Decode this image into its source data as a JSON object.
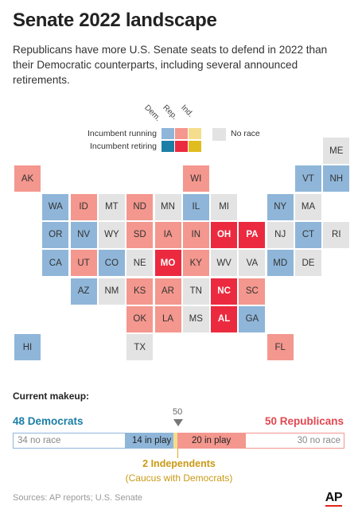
{
  "title": "Senate 2022 landscape",
  "subtitle": "Republicans have more U.S. Senate seats to defend in 2022 than their Democratic counterparts, including several announced retirements.",
  "legend": {
    "columns": [
      "Dem.",
      "Rep.",
      "Ind."
    ],
    "rows": [
      "Incumbent running",
      "Incumbent retiring"
    ],
    "no_race": "No race",
    "colors": {
      "dem_running": "#8fb6d9",
      "rep_running": "#f4978e",
      "ind_running": "#f4dd8c",
      "dem_retiring": "#1b7ea6",
      "rep_retiring": "#ec2a3f",
      "ind_retiring": "#e0bc1e",
      "no_race": "#e3e3e3"
    }
  },
  "states": [
    {
      "code": "ME",
      "status": "no_race"
    },
    {
      "code": "AK",
      "status": "rep_running"
    },
    {
      "code": "WI",
      "status": "rep_running"
    },
    {
      "code": "VT",
      "status": "dem_running"
    },
    {
      "code": "NH",
      "status": "dem_running"
    },
    {
      "code": "WA",
      "status": "dem_running"
    },
    {
      "code": "ID",
      "status": "rep_running"
    },
    {
      "code": "MT",
      "status": "no_race"
    },
    {
      "code": "ND",
      "status": "rep_running"
    },
    {
      "code": "MN",
      "status": "no_race"
    },
    {
      "code": "IL",
      "status": "dem_running"
    },
    {
      "code": "MI",
      "status": "no_race"
    },
    {
      "code": "NY",
      "status": "dem_running"
    },
    {
      "code": "MA",
      "status": "no_race"
    },
    {
      "code": "OR",
      "status": "dem_running"
    },
    {
      "code": "NV",
      "status": "dem_running"
    },
    {
      "code": "WY",
      "status": "no_race"
    },
    {
      "code": "SD",
      "status": "rep_running"
    },
    {
      "code": "IA",
      "status": "rep_running"
    },
    {
      "code": "IN",
      "status": "rep_running"
    },
    {
      "code": "OH",
      "status": "rep_retiring"
    },
    {
      "code": "PA",
      "status": "rep_retiring"
    },
    {
      "code": "NJ",
      "status": "no_race"
    },
    {
      "code": "CT",
      "status": "dem_running"
    },
    {
      "code": "RI",
      "status": "no_race"
    },
    {
      "code": "CA",
      "status": "dem_running"
    },
    {
      "code": "UT",
      "status": "rep_running"
    },
    {
      "code": "CO",
      "status": "dem_running"
    },
    {
      "code": "NE",
      "status": "no_race"
    },
    {
      "code": "MO",
      "status": "rep_retiring"
    },
    {
      "code": "KY",
      "status": "rep_running"
    },
    {
      "code": "WV",
      "status": "no_race"
    },
    {
      "code": "VA",
      "status": "no_race"
    },
    {
      "code": "MD",
      "status": "dem_running"
    },
    {
      "code": "DE",
      "status": "no_race"
    },
    {
      "code": "AZ",
      "status": "dem_running"
    },
    {
      "code": "NM",
      "status": "no_race"
    },
    {
      "code": "KS",
      "status": "rep_running"
    },
    {
      "code": "AR",
      "status": "rep_running"
    },
    {
      "code": "TN",
      "status": "no_race"
    },
    {
      "code": "NC",
      "status": "rep_retiring"
    },
    {
      "code": "SC",
      "status": "rep_running"
    },
    {
      "code": "OK",
      "status": "rep_running"
    },
    {
      "code": "LA",
      "status": "rep_running"
    },
    {
      "code": "MS",
      "status": "no_race"
    },
    {
      "code": "AL",
      "status": "rep_retiring"
    },
    {
      "code": "GA",
      "status": "dem_running"
    },
    {
      "code": "HI",
      "status": "dem_running"
    },
    {
      "code": "TX",
      "status": "no_race"
    },
    {
      "code": "FL",
      "status": "rep_running"
    }
  ],
  "makeup": {
    "label": "Current makeup:",
    "democrats": "48 Democrats",
    "republicans": "50 Republicans",
    "threshold": "50",
    "dem_no_race": "34 no race",
    "dem_in_play": "14 in play",
    "rep_in_play": "20 in play",
    "rep_no_race": "30 no race",
    "independents": "2 Independents",
    "independents_note": "(Caucus with Democrats)"
  },
  "sources": "Sources: AP reports; U.S. Senate",
  "logo": "AP"
}
